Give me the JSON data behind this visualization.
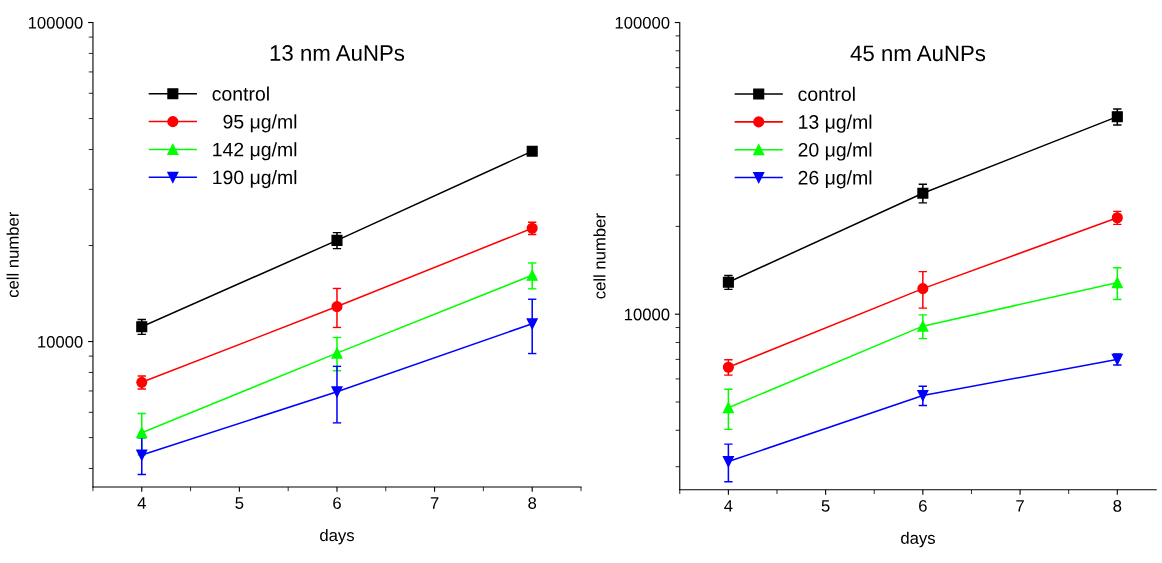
{
  "chart_data": [
    {
      "type": "line",
      "title": "13 nm AuNPs",
      "xlabel": "days",
      "ylabel": "cell number",
      "x": [
        4,
        6,
        8
      ],
      "log": "y",
      "ylim": [
        3500,
        100000
      ],
      "yticks": [
        10000,
        100000
      ],
      "xlim": [
        3.5,
        8.5
      ],
      "xticks": [
        4,
        5,
        6,
        7,
        8
      ],
      "grid": false,
      "legend": "top left",
      "series": [
        {
          "name": "control",
          "color": "#000000",
          "marker": "square",
          "values": [
            11130,
            20750,
            39500
          ],
          "errors": [
            600,
            1200,
            600
          ]
        },
        {
          "name": "  95 μg/ml",
          "color": "#ff0000",
          "marker": "circle",
          "values": [
            7450,
            12870,
            22650
          ],
          "errors": [
            350,
            1800,
            1000
          ]
        },
        {
          "name": "142 μg/ml",
          "color": "#00ff00",
          "marker": "triangle",
          "values": [
            5180,
            9200,
            16130
          ],
          "errors": [
            770,
            1100,
            1500
          ]
        },
        {
          "name": "190 μg/ml",
          "color": "#0000ff",
          "marker": "triangle_down",
          "values": [
            4410,
            6960,
            11370
          ],
          "errors": [
            580,
            1400,
            2200
          ]
        }
      ]
    },
    {
      "type": "line",
      "title": "45 nm AuNPs",
      "xlabel": "days",
      "ylabel": "cell number",
      "x": [
        4,
        6,
        8
      ],
      "log": "y",
      "ylim": [
        2500,
        100000
      ],
      "yticks": [
        10000,
        100000
      ],
      "xlim": [
        3.5,
        8.4
      ],
      "xticks": [
        4,
        5,
        6,
        7,
        8
      ],
      "grid": false,
      "legend": "top left",
      "series": [
        {
          "name": "control",
          "color": "#000000",
          "marker": "square",
          "values": [
            12870,
            25990,
            47550
          ],
          "errors": [
            700,
            1900,
            3000
          ]
        },
        {
          "name": "13 μg/ml",
          "color": "#ff0000",
          "marker": "circle",
          "values": [
            6580,
            12240,
            21420
          ],
          "errors": [
            400,
            1750,
            1100
          ]
        },
        {
          "name": "20 μg/ml",
          "color": "#00ff00",
          "marker": "triangle",
          "values": [
            4780,
            9100,
            12830
          ],
          "errors": [
            750,
            850,
            1600
          ]
        },
        {
          "name": "26 μg/ml",
          "color": "#0000ff",
          "marker": "triangle_down",
          "values": [
            3125,
            5265,
            7000
          ],
          "errors": [
            460,
            400,
            300
          ]
        }
      ]
    }
  ]
}
